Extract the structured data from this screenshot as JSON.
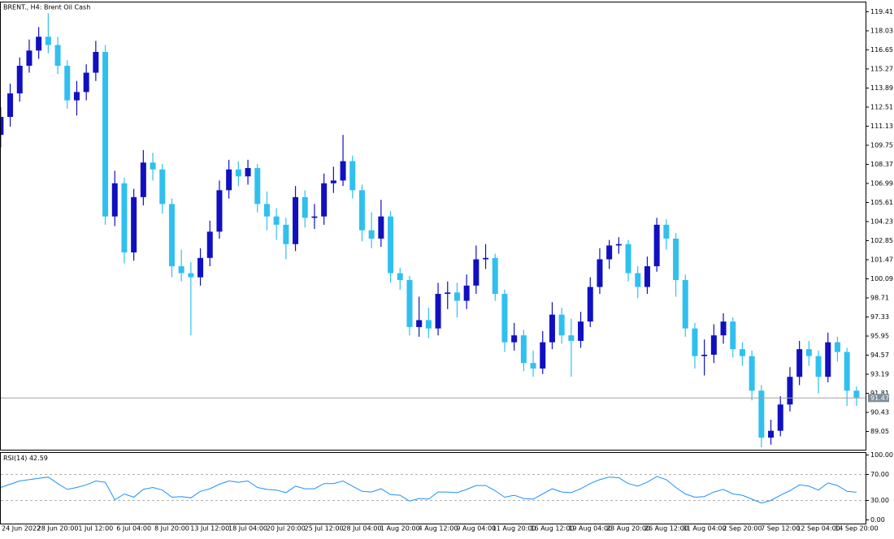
{
  "chart_data": [
    {
      "type": "candlestick",
      "title": "BRENT., H4:  Brent Oil Cash",
      "categories": [
        "24 Jun 2022",
        null,
        null,
        null,
        null,
        null,
        "28 Jun 20:00",
        null,
        null,
        null,
        "1 Jul 12:00",
        null,
        null,
        null,
        "6 Jul 04:00",
        null,
        null,
        null,
        "8 Jul 20:00",
        null,
        null,
        null,
        "13 Jul 12:00",
        null,
        null,
        null,
        "18 Jul 04:00",
        null,
        null,
        null,
        "20 Jul 20:00",
        null,
        null,
        null,
        "25 Jul 12:00",
        null,
        null,
        null,
        "28 Jul 04:00",
        null,
        null,
        null,
        "1 Aug 20:00",
        null,
        null,
        null,
        "4 Aug 12:00",
        null,
        null,
        null,
        "9 Aug 04:00",
        null,
        null,
        null,
        "11 Aug 20:00",
        null,
        null,
        null,
        "16 Aug 12:00",
        null,
        null,
        null,
        "19 Aug 04:00",
        null,
        null,
        null,
        "23 Aug 20:00",
        null,
        null,
        null,
        "26 Aug 12:00",
        null,
        null,
        null,
        "31 Aug 04:00",
        null,
        null,
        null,
        "2 Sep 20:00",
        null,
        null,
        null,
        "7 Sep 12:00",
        null,
        null,
        null,
        "12 Sep 04:00",
        null,
        null,
        null,
        "14 Sep 20:00"
      ],
      "open": [
        110.5,
        111.8,
        113.5,
        115.5,
        116.6,
        117.6,
        117.0,
        115.5,
        113.0,
        113.6,
        115.0,
        116.5,
        104.6,
        107.0,
        102.0,
        106.0,
        108.5,
        108.0,
        105.5,
        101.0,
        100.5,
        100.2,
        101.6,
        103.5,
        106.5,
        108.0,
        107.5,
        108.1,
        105.5,
        104.6,
        104.0,
        102.6,
        106.0,
        104.5,
        104.6,
        107.0,
        107.2,
        108.6,
        106.5,
        103.6,
        103.0,
        104.6,
        100.5,
        100.0,
        96.6,
        97.1,
        96.5,
        99.0,
        99.1,
        98.5,
        99.6,
        101.5,
        101.6,
        99.0,
        95.5,
        96.0,
        94.0,
        93.6,
        95.5,
        97.5,
        96.0,
        95.6,
        97.0,
        99.5,
        101.5,
        102.5,
        102.6,
        100.5,
        99.5,
        101.0,
        104.0,
        103.0,
        100.0,
        96.5,
        94.5,
        94.6,
        96.0,
        97.0,
        95.0,
        94.5,
        92.0,
        88.6,
        89.1,
        91.0,
        93.0,
        95.0,
        94.5,
        93.0,
        95.5,
        94.8,
        92.0
      ],
      "high": [
        112.5,
        114.2,
        116.1,
        117.4,
        118.3,
        119.3,
        117.6,
        115.9,
        114.4,
        115.6,
        117.3,
        117.0,
        107.9,
        107.4,
        106.6,
        109.4,
        109.2,
        108.4,
        105.9,
        102.2,
        101.3,
        102.3,
        104.3,
        107.2,
        108.7,
        108.6,
        108.7,
        108.4,
        106.4,
        105.2,
        104.5,
        106.8,
        106.5,
        105.5,
        107.7,
        108.2,
        110.5,
        109.0,
        106.9,
        104.9,
        105.8,
        105.0,
        100.9,
        100.3,
        98.8,
        98.0,
        99.8,
        99.9,
        99.8,
        100.4,
        102.5,
        102.6,
        101.9,
        99.3,
        96.9,
        96.4,
        94.9,
        96.3,
        98.4,
        98.0,
        97.2,
        97.7,
        100.2,
        102.3,
        102.9,
        103.1,
        102.9,
        101.0,
        101.7,
        104.5,
        104.4,
        103.4,
        100.4,
        96.9,
        95.7,
        96.8,
        97.6,
        97.3,
        95.5,
        94.9,
        92.4,
        89.9,
        91.6,
        93.7,
        95.6,
        95.6,
        94.9,
        96.2,
        95.9,
        95.1,
        92.3
      ],
      "low": [
        109.6,
        111.1,
        112.9,
        115.0,
        116.0,
        116.4,
        114.9,
        112.4,
        111.9,
        113.0,
        114.4,
        104.0,
        103.9,
        101.2,
        101.4,
        105.4,
        107.2,
        104.8,
        100.2,
        99.9,
        96.0,
        99.6,
        101.0,
        103.0,
        105.9,
        106.8,
        106.9,
        104.9,
        103.6,
        102.9,
        101.5,
        102.1,
        103.8,
        103.7,
        104.0,
        106.3,
        106.8,
        105.9,
        102.8,
        102.3,
        102.4,
        99.8,
        99.3,
        96.0,
        95.9,
        95.8,
        96.0,
        97.9,
        97.3,
        97.9,
        99.0,
        100.8,
        98.5,
        94.8,
        94.9,
        93.4,
        93.0,
        93.2,
        95.0,
        95.4,
        93.0,
        95.1,
        96.6,
        99.0,
        100.8,
        101.9,
        99.9,
        98.7,
        99.0,
        100.6,
        102.2,
        98.8,
        95.9,
        93.6,
        93.1,
        94.0,
        95.4,
        94.4,
        93.8,
        91.3,
        87.9,
        88.1,
        88.7,
        90.5,
        92.4,
        93.8,
        91.8,
        92.6,
        94.1,
        90.9,
        90.9
      ],
      "close": [
        111.8,
        113.5,
        115.5,
        116.6,
        117.6,
        117.0,
        115.5,
        113.0,
        113.6,
        115.0,
        116.5,
        104.6,
        107.0,
        102.0,
        106.0,
        108.5,
        108.0,
        105.5,
        101.0,
        100.5,
        100.2,
        101.6,
        103.5,
        106.5,
        108.0,
        107.5,
        108.1,
        105.5,
        104.6,
        104.0,
        102.6,
        106.0,
        104.5,
        104.6,
        107.0,
        107.2,
        108.6,
        106.5,
        103.6,
        103.0,
        104.6,
        100.5,
        100.0,
        96.6,
        97.1,
        96.5,
        99.0,
        99.1,
        98.5,
        99.6,
        101.5,
        101.6,
        99.0,
        95.5,
        96.0,
        94.0,
        93.6,
        95.5,
        97.5,
        96.0,
        95.6,
        97.0,
        99.5,
        101.5,
        102.5,
        102.6,
        100.5,
        99.5,
        101.0,
        104.0,
        103.0,
        100.0,
        96.5,
        94.5,
        94.6,
        96.0,
        97.0,
        95.0,
        94.5,
        92.0,
        88.6,
        89.1,
        91.0,
        93.0,
        95.0,
        94.5,
        93.0,
        95.5,
        94.8,
        92.0,
        91.47
      ],
      "up_color": "#1010c0",
      "down_color": "#30c0f0",
      "current_price": 91.47,
      "ylim": [
        87.7,
        120.11
      ],
      "yticks": [
        119.41,
        118.03,
        116.65,
        115.27,
        113.89,
        112.51,
        111.13,
        109.75,
        108.37,
        106.99,
        105.61,
        104.23,
        102.85,
        101.47,
        100.09,
        98.71,
        97.33,
        95.95,
        94.57,
        93.19,
        91.81,
        90.43,
        89.05
      ]
    },
    {
      "type": "line",
      "title": "RSI(14)",
      "color": "#1e90ff",
      "values": [
        50,
        55,
        60,
        62,
        64,
        66,
        56,
        47,
        50,
        54,
        60,
        58,
        31,
        40,
        35,
        47,
        50,
        46,
        35,
        36,
        34,
        44,
        48,
        55,
        60,
        58,
        60,
        50,
        47,
        46,
        42,
        52,
        48,
        48,
        56,
        56,
        60,
        52,
        44,
        43,
        48,
        39,
        38,
        29,
        33,
        32,
        43,
        43,
        42,
        47,
        53,
        53,
        45,
        35,
        38,
        33,
        32,
        40,
        48,
        43,
        42,
        48,
        56,
        62,
        66,
        65,
        56,
        52,
        58,
        67,
        62,
        50,
        40,
        35,
        36,
        43,
        47,
        40,
        38,
        32,
        26,
        30,
        38,
        45,
        54,
        52,
        46,
        57,
        53,
        44,
        42.59
      ],
      "levels": [
        70,
        30
      ],
      "ylim": [
        -6.25,
        103.75
      ],
      "yticks": [
        {
          "value": 100,
          "label": "100.00"
        },
        {
          "value": 70,
          "label": "70.00"
        },
        {
          "value": 30,
          "label": "30.00"
        },
        {
          "value": 0,
          "label": "0.00"
        }
      ]
    }
  ]
}
